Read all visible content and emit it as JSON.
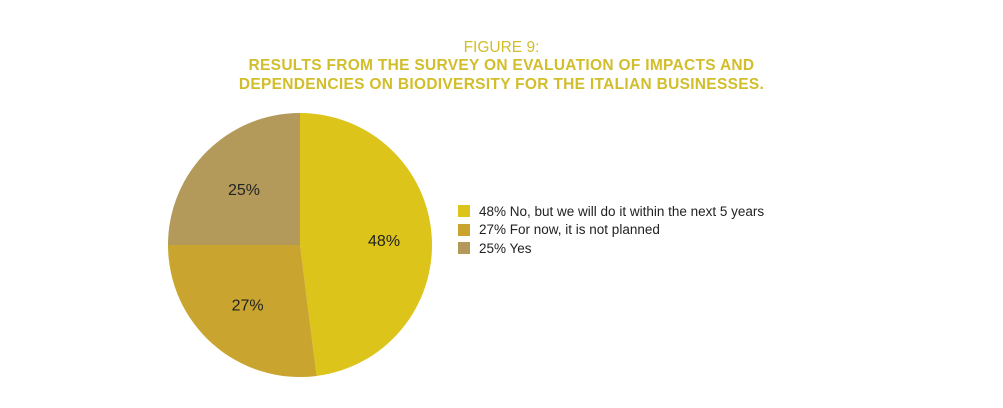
{
  "chart_data": {
    "type": "pie",
    "title": "FIGURE 9:",
    "subtitle_lines": [
      "RESULTS FROM THE SURVEY ON EVALUATION OF IMPACTS AND",
      "DEPENDENCIES ON BIODIVERSITY FOR THE ITALIAN BUSINESSES."
    ],
    "slices": [
      {
        "label": "No, but we will do it within the next 5 years",
        "value": 48,
        "data_label": "48%",
        "legend": "48% No, but we will do it within the next 5 years",
        "color": "#dcc41a"
      },
      {
        "label": "For now, it is not planned",
        "value": 27,
        "data_label": "27%",
        "legend": "27% For now, it is not planned",
        "color": "#c9a42e"
      },
      {
        "label": "Yes",
        "value": 25,
        "data_label": "25%",
        "legend": "25% Yes",
        "color": "#b39a5b"
      }
    ],
    "start_angle": "top",
    "direction": "clockwise",
    "legend_placement": "right"
  }
}
